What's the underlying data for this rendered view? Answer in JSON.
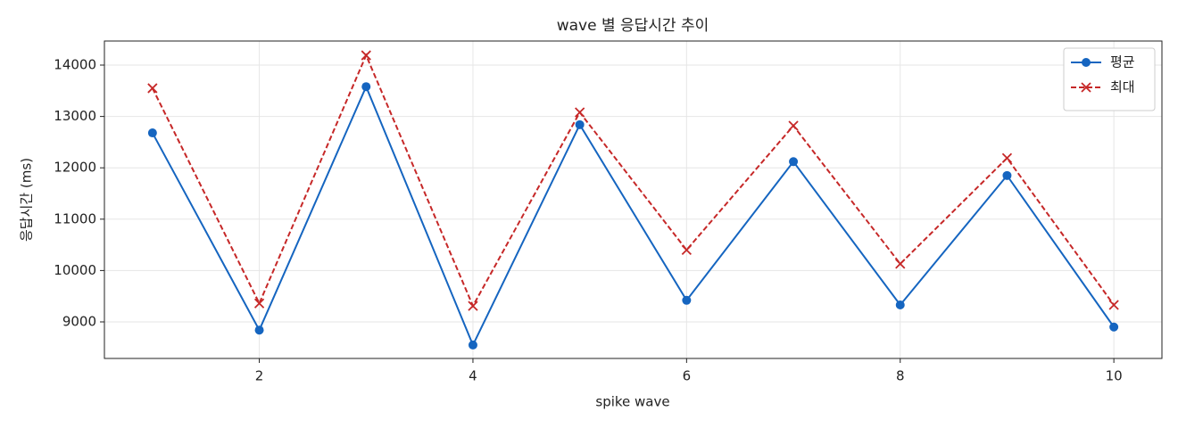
{
  "chart_data": {
    "type": "line",
    "title": "wave 별 응답시간 추이",
    "x_label": "spike wave",
    "y_label": "응답시간 (ms)",
    "x": [
      1,
      2,
      3,
      4,
      5,
      6,
      7,
      8,
      9,
      10
    ],
    "series": [
      {
        "name": "평균",
        "color": "#1565c0",
        "linestyle": "solid",
        "marker": "circle",
        "values": [
          12680,
          8840,
          13580,
          8550,
          12840,
          9420,
          12120,
          9330,
          11850,
          8900
        ]
      },
      {
        "name": "최대",
        "color": "#c62828",
        "linestyle": "dashed",
        "marker": "x",
        "values": [
          13550,
          9360,
          14190,
          9310,
          13080,
          10400,
          12820,
          10130,
          12190,
          9330
        ]
      }
    ],
    "xlim": [
      0.55,
      10.45
    ],
    "xticks": [
      2,
      4,
      6,
      8,
      10
    ],
    "ylim": [
      8288,
      14469
    ],
    "yticks": [
      9000,
      10000,
      11000,
      12000,
      13000,
      14000
    ],
    "grid": true,
    "legend": "upper right"
  }
}
